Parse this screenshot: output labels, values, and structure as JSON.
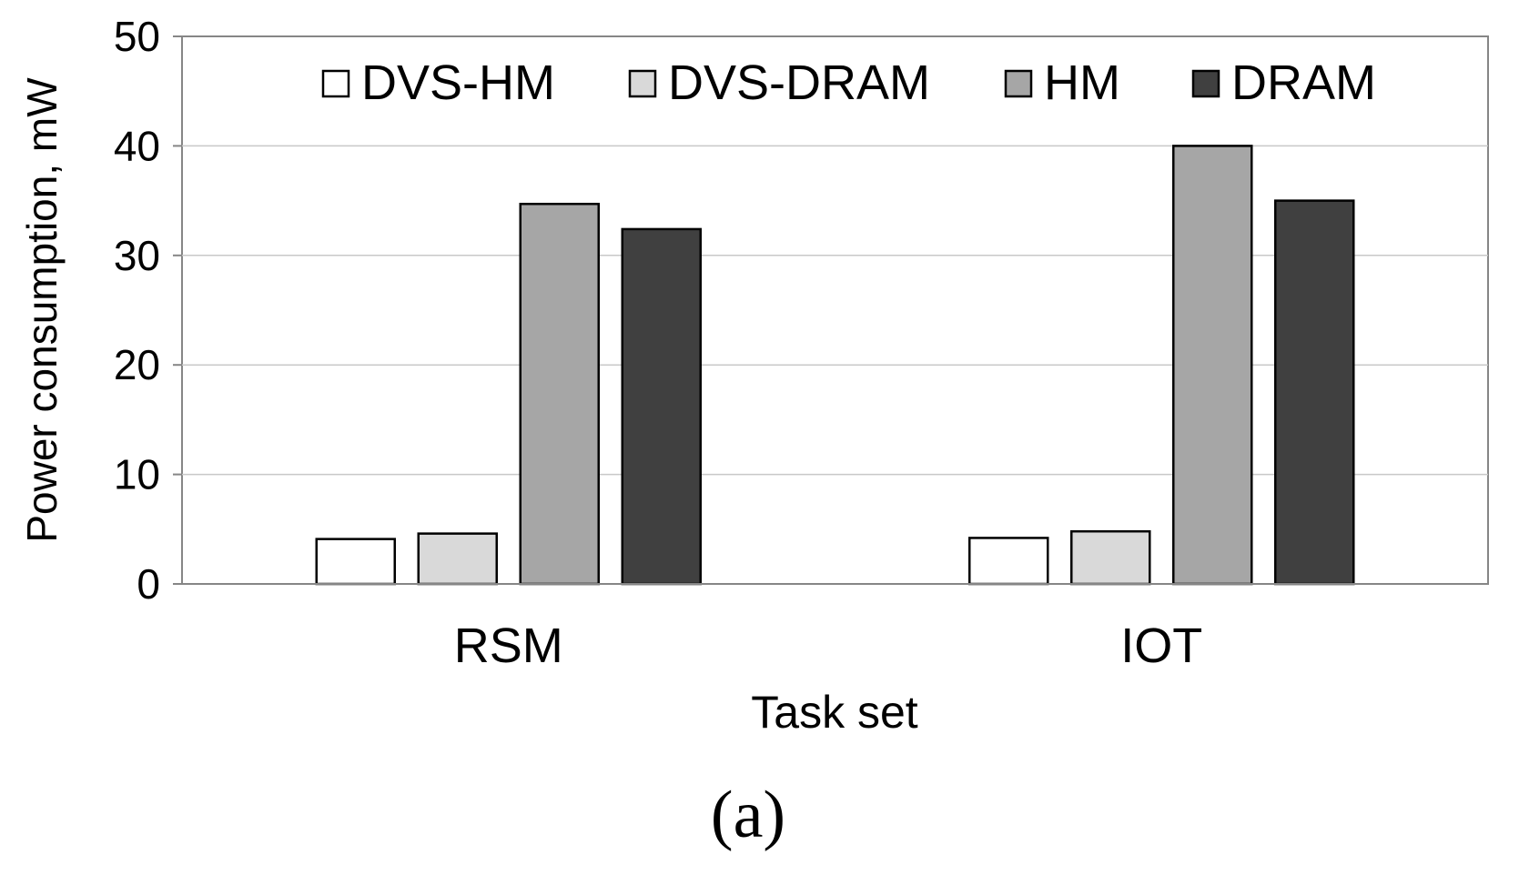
{
  "chart_data": {
    "type": "bar",
    "title": "",
    "xlabel": "Task set",
    "ylabel": "Power consumption, mW",
    "caption": "(a)",
    "categories": [
      "RSM",
      "IOT"
    ],
    "series": [
      {
        "name": "DVS-HM",
        "values": [
          4.1,
          4.2
        ],
        "color": "#ffffff"
      },
      {
        "name": "DVS-DRAM",
        "values": [
          4.6,
          4.8
        ],
        "color": "#d9d9d9"
      },
      {
        "name": "HM",
        "values": [
          34.7,
          40.0
        ],
        "color": "#a6a6a6"
      },
      {
        "name": "DRAM",
        "values": [
          32.4,
          35.0
        ],
        "color": "#404040"
      }
    ],
    "ylim": [
      0,
      50
    ],
    "yticks": [
      "0",
      "10",
      "20",
      "30",
      "40",
      "50"
    ],
    "grid": true,
    "legend_position": "top"
  }
}
